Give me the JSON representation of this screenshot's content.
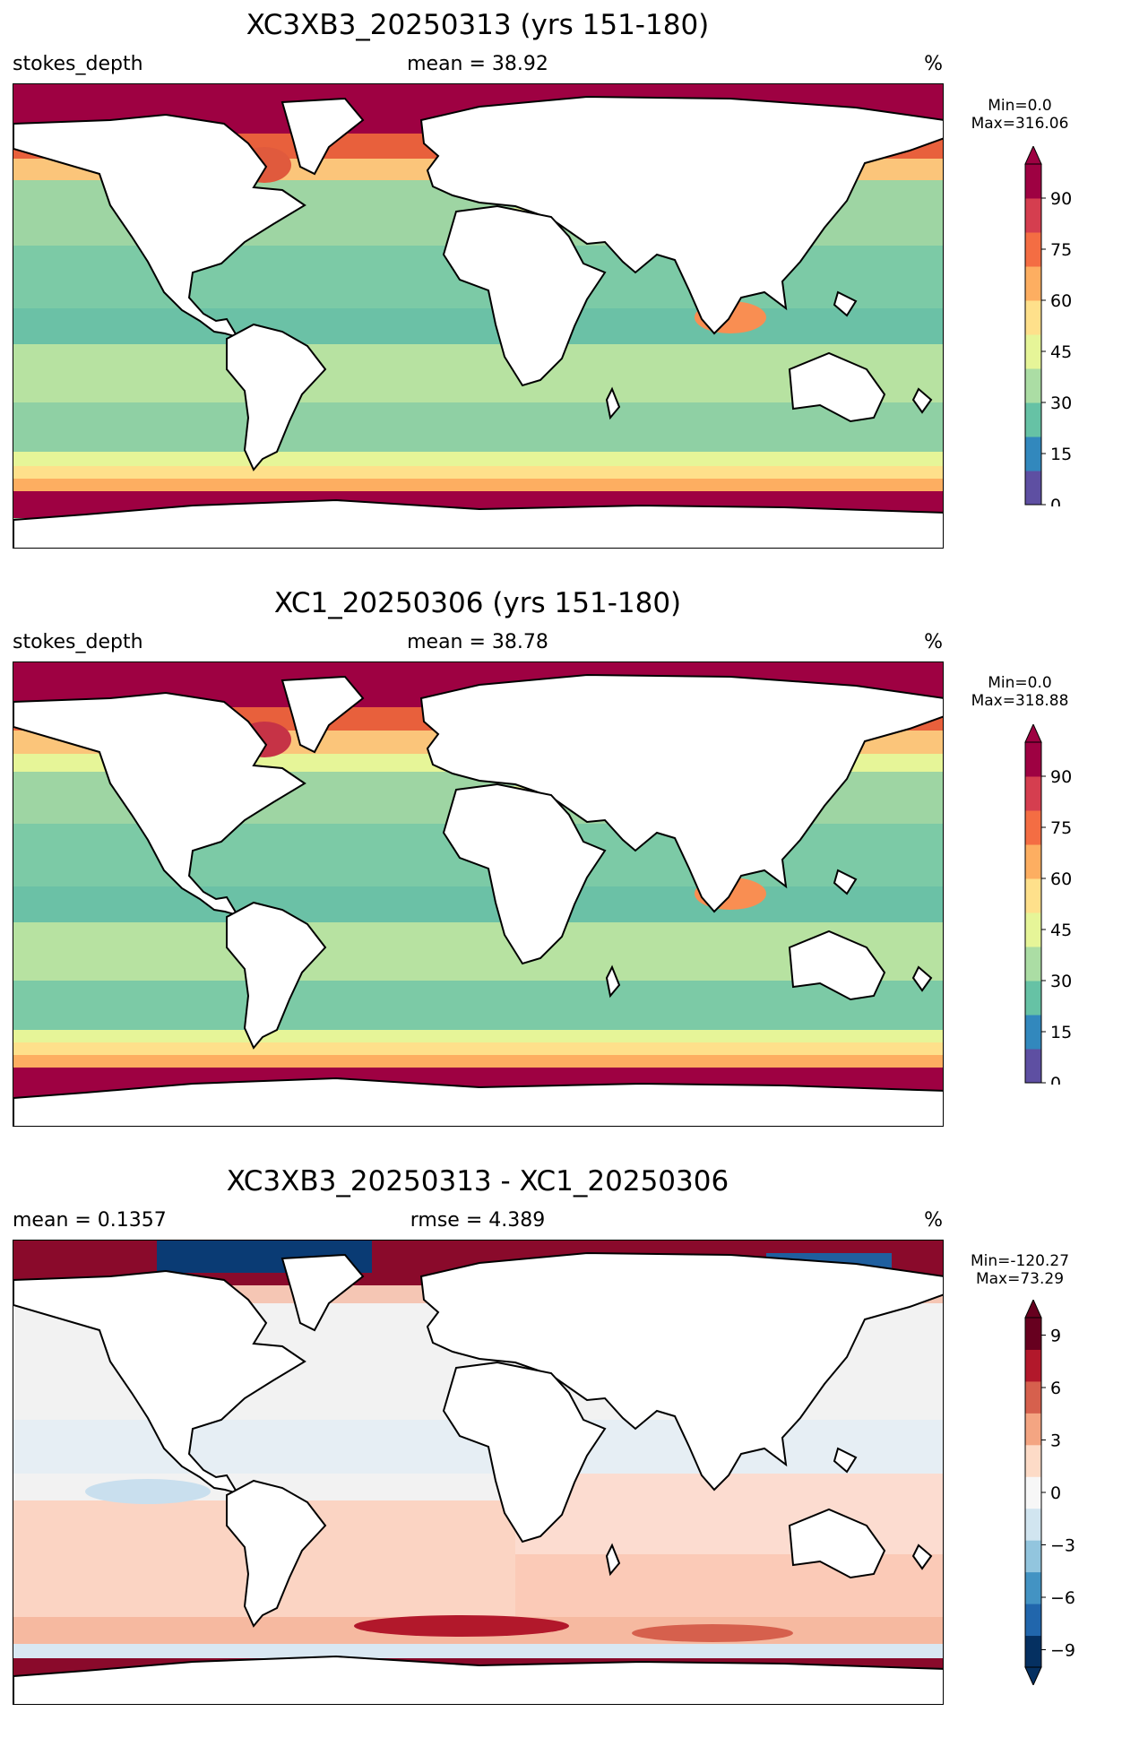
{
  "panels": [
    {
      "title": "XC3XB3_20250313 (yrs 151-180)",
      "left_label": "stokes_depth",
      "center_label": "mean = 38.92",
      "unit": "%",
      "min_label": "Min=0.0",
      "max_label": "Max=316.06",
      "colorbar": {
        "ticks": [
          "0",
          "15",
          "30",
          "45",
          "60",
          "75",
          "90"
        ],
        "min": 0,
        "max": 100,
        "extend": "max",
        "colors": [
          "#5e4fa2",
          "#3288bd",
          "#66c2a5",
          "#abdda4",
          "#e6f598",
          "#fee08b",
          "#fdae61",
          "#f46d43",
          "#d53e4f",
          "#9e0142"
        ]
      }
    },
    {
      "title": "XC1_20250306 (yrs 151-180)",
      "left_label": "stokes_depth",
      "center_label": "mean = 38.78",
      "unit": "%",
      "min_label": "Min=0.0",
      "max_label": "Max=318.88",
      "colorbar": {
        "ticks": [
          "0",
          "15",
          "30",
          "45",
          "60",
          "75",
          "90"
        ],
        "min": 0,
        "max": 100,
        "extend": "max",
        "colors": [
          "#5e4fa2",
          "#3288bd",
          "#66c2a5",
          "#abdda4",
          "#e6f598",
          "#fee08b",
          "#fdae61",
          "#f46d43",
          "#d53e4f",
          "#9e0142"
        ]
      }
    },
    {
      "title": "XC3XB3_20250313 - XC1_20250306",
      "left_label": "mean = 0.1357",
      "center_label": "rmse = 4.389",
      "unit": "%",
      "min_label": "Min=-120.27",
      "max_label": "Max=73.29",
      "colorbar": {
        "ticks": [
          "−9",
          "−6",
          "−3",
          "0",
          "3",
          "6",
          "9"
        ],
        "min": -10,
        "max": 10,
        "extend": "both",
        "colors": [
          "#053061",
          "#2166ac",
          "#4393c3",
          "#92c5de",
          "#d1e5f0",
          "#f7f7f7",
          "#fddbc7",
          "#f4a582",
          "#d6604d",
          "#b2182b",
          "#67001f"
        ]
      }
    }
  ]
}
